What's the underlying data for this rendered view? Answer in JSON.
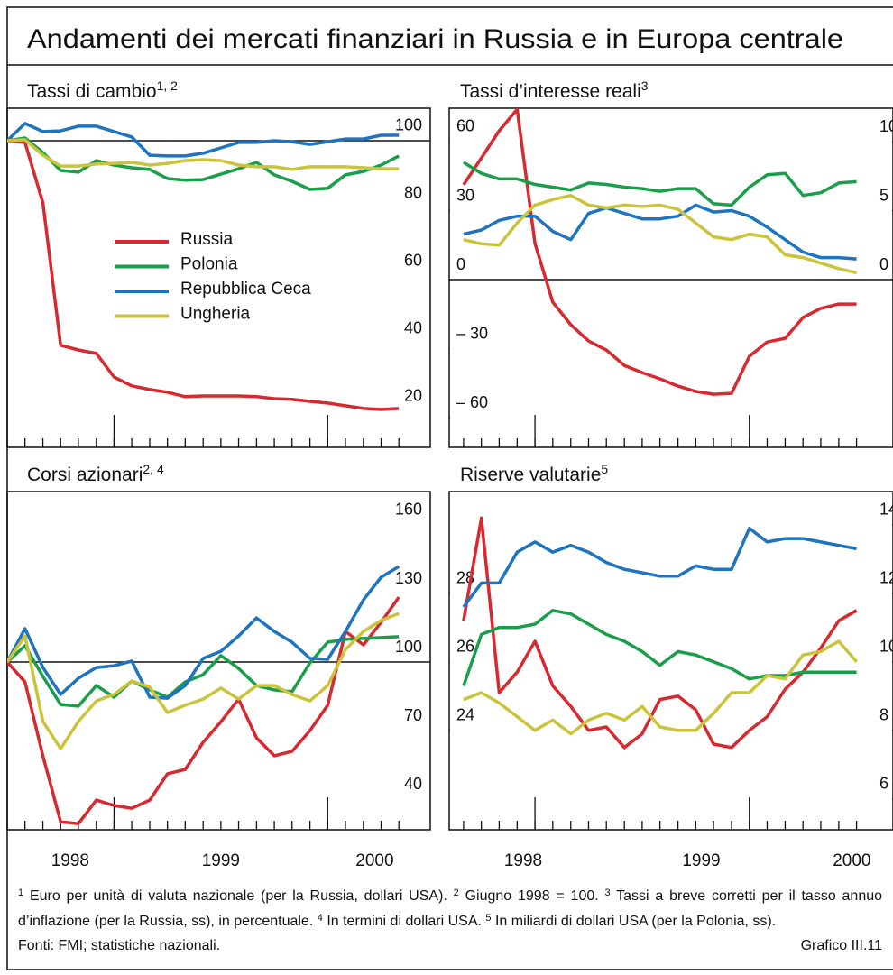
{
  "title": "Andamenti dei mercati finanziari in Russia e in Europa centrale",
  "chart_data": [
    {
      "type": "line",
      "title": "Tassi di cambio",
      "title_note": "1, 2",
      "x": [
        1998.5,
        1998.583,
        1998.667,
        1998.75,
        1998.833,
        1998.917,
        1999.0,
        1999.083,
        1999.167,
        1999.25,
        1999.333,
        1999.417,
        1999.5,
        1999.583,
        1999.667,
        1999.75,
        1999.833,
        1999.917,
        2000.0,
        2000.083,
        2000.167,
        2000.25,
        2000.333
      ],
      "xlim": [
        1998.5,
        2000.48
      ],
      "xticks": [
        1999,
        2000
      ],
      "ylim": [
        9.3,
        109.6
      ],
      "yticks": [
        20,
        40,
        60,
        80,
        100
      ],
      "ytick_side": "right",
      "refline": 100,
      "legend": "center left",
      "series": [
        {
          "name": "Russia",
          "color": "#d62a30",
          "values": [
            100,
            99.5,
            81.6,
            39.5,
            38.1,
            37.1,
            30.1,
            27.5,
            26.4,
            25.6,
            24.3,
            24.5,
            24.5,
            24.5,
            24.3,
            23.7,
            23.5,
            22.9,
            22.4,
            21.6,
            20.8,
            20.5,
            20.8
          ]
        },
        {
          "name": "Polonia",
          "color": "#1a9e4a",
          "values": [
            100,
            100.8,
            96.5,
            91.2,
            90.7,
            94.1,
            92.8,
            92.0,
            91.5,
            88.8,
            88.3,
            88.5,
            90.1,
            91.7,
            93.6,
            89.9,
            88.0,
            85.6,
            85.9,
            89.9,
            90.9,
            92.8,
            95.5
          ]
        },
        {
          "name": "Repubblica Ceca",
          "color": "#1f74bf",
          "values": [
            100,
            105.1,
            102.7,
            102.9,
            104.3,
            104.3,
            102.7,
            101.1,
            95.7,
            95.5,
            95.5,
            96.3,
            97.9,
            99.5,
            99.5,
            100,
            99.7,
            98.9,
            99.7,
            100.5,
            100.5,
            101.6,
            101.6
          ]
        },
        {
          "name": "Ungheria",
          "color": "#c9c43c",
          "values": [
            100,
            100.3,
            95.7,
            92.5,
            92.5,
            93.1,
            93.3,
            93.6,
            92.8,
            93.3,
            94.1,
            94.4,
            94.1,
            92.8,
            92.3,
            92.3,
            91.5,
            92.3,
            92.3,
            92.3,
            92.0,
            91.7,
            91.7
          ]
        }
      ]
    },
    {
      "type": "line",
      "title": "Tassi d’interesse reali",
      "title_note": "3",
      "x": [
        1998.667,
        1998.75,
        1998.833,
        1998.917,
        1999.0,
        1999.083,
        1999.167,
        1999.25,
        1999.333,
        1999.417,
        1999.5,
        1999.583,
        1999.667,
        1999.75,
        1999.833,
        1999.917,
        2000.0,
        2000.083,
        2000.167,
        2000.25,
        2000.333,
        2000.417,
        2000.5
      ],
      "xlim": [
        1998.6,
        2000.67
      ],
      "xticks": [
        1999,
        2000
      ],
      "ylim": [
        -72.9,
        74.5
      ],
      "yticks": [
        {
          "value": -60,
          "label": "– 60"
        },
        {
          "value": -30,
          "label": "– 30"
        },
        0,
        30,
        60
      ],
      "ytick_side": "left",
      "y2lim": [
        -12.15,
        12.42
      ],
      "y2ticks": [
        0,
        5,
        10
      ],
      "refline": 0,
      "series": [
        {
          "color": "#d62a30",
          "values": [
            41.2,
            52.9,
            64.7,
            74.0,
            15.7,
            -9.8,
            -19.6,
            -26.7,
            -30.6,
            -37.3,
            -40.4,
            -43.1,
            -46.3,
            -48.6,
            -49.8,
            -49.4,
            -33.3,
            -27.1,
            -25.5,
            -16.5,
            -12.5,
            -10.6,
            -10.6
          ]
        },
        {
          "color": "#1a9e4a",
          "axis": "y2",
          "values": [
            8.5,
            7.7,
            7.3,
            7.3,
            6.9,
            6.7,
            6.5,
            7.0,
            6.9,
            6.7,
            6.6,
            6.4,
            6.6,
            6.6,
            5.5,
            5.4,
            6.7,
            7.6,
            7.7,
            6.1,
            6.3,
            7.0,
            7.1
          ]
        },
        {
          "color": "#1f74bf",
          "axis": "y2",
          "values": [
            3.3,
            3.6,
            4.3,
            4.6,
            4.6,
            3.5,
            2.9,
            4.8,
            5.2,
            4.8,
            4.4,
            4.4,
            4.6,
            5.4,
            4.9,
            5.0,
            4.6,
            3.8,
            2.9,
            2.0,
            1.6,
            1.6,
            1.5
          ]
        },
        {
          "color": "#c9c43c",
          "axis": "y2",
          "values": [
            2.9,
            2.6,
            2.5,
            4.1,
            5.4,
            5.8,
            6.1,
            5.4,
            5.2,
            5.4,
            5.3,
            5.4,
            5.1,
            4.1,
            3.1,
            2.9,
            3.3,
            3.1,
            1.8,
            1.6,
            1.2,
            0.8,
            0.5
          ]
        }
      ]
    },
    {
      "type": "line",
      "title": "Corsi azionari",
      "title_note": "2, 4",
      "x": [
        1998.5,
        1998.583,
        1998.667,
        1998.75,
        1998.833,
        1998.917,
        1999.0,
        1999.083,
        1999.167,
        1999.25,
        1999.333,
        1999.417,
        1999.5,
        1999.583,
        1999.667,
        1999.75,
        1999.833,
        1999.917,
        2000.0,
        2000.083,
        2000.167,
        2000.25,
        2000.333
      ],
      "xlim": [
        1998.5,
        2000.48
      ],
      "xticks": [
        1999,
        2000
      ],
      "xlabels": [
        {
          "value": 1998.795,
          "label": "1998"
        },
        {
          "value": 1999.5,
          "label": "1999"
        },
        {
          "value": 2000.22,
          "label": "2000"
        }
      ],
      "ylim": [
        26.6,
        174.6
      ],
      "yticks": [
        40,
        70,
        100,
        130,
        160
      ],
      "ytick_side": "right",
      "refline": 100,
      "series": [
        {
          "color": "#d62a30",
          "values": [
            100,
            91.3,
            58.9,
            30.1,
            29.3,
            39.6,
            37.2,
            36.0,
            39.6,
            51.1,
            53.0,
            64.9,
            73.9,
            83.8,
            66.8,
            59.0,
            60.9,
            70.0,
            81.1,
            113.4,
            107.5,
            117.4,
            128.4
          ]
        },
        {
          "color": "#1a9e4a",
          "values": [
            100,
            107.1,
            93.7,
            81.4,
            80.7,
            89.7,
            84.6,
            91.7,
            87.8,
            84.6,
            91.3,
            94.5,
            102.8,
            97.2,
            89.7,
            87.8,
            87.0,
            99.6,
            108.7,
            109.9,
            110.3,
            110.7,
            111.1
          ]
        },
        {
          "color": "#1f74bf",
          "values": [
            100,
            114.6,
            97.6,
            85.8,
            92.9,
            97.6,
            98.4,
            100.4,
            84.6,
            84.2,
            89.7,
            101.6,
            104.7,
            111.4,
            119.3,
            113.4,
            108.7,
            101.6,
            101.2,
            113.4,
            127.2,
            137.1,
            141.8
          ]
        },
        {
          "color": "#c9c43c",
          "values": [
            100,
            111.4,
            74.0,
            62.1,
            74.0,
            83.0,
            85.8,
            91.7,
            89.0,
            77.9,
            81.1,
            83.8,
            88.6,
            83.8,
            89.7,
            89.7,
            85.8,
            83.0,
            89.7,
            105.5,
            113.4,
            118.2,
            121.3
          ]
        }
      ]
    },
    {
      "type": "line",
      "title": "Riserve valutarie",
      "title_note": "5",
      "x": [
        1998.667,
        1998.75,
        1998.833,
        1998.917,
        1999.0,
        1999.083,
        1999.167,
        1999.25,
        1999.333,
        1999.417,
        1999.5,
        1999.583,
        1999.667,
        1999.75,
        1999.833,
        1999.917,
        2000.0,
        2000.083,
        2000.167,
        2000.25,
        2000.333,
        2000.417,
        2000.5
      ],
      "xlim": [
        1998.6,
        2000.67
      ],
      "xticks": [
        1999,
        2000
      ],
      "xlabels": [
        {
          "value": 1998.945,
          "label": "1998"
        },
        {
          "value": 1999.776,
          "label": "1999"
        },
        {
          "value": 2000.478,
          "label": "2000"
        }
      ],
      "ylim": [
        21.1,
        30.97
      ],
      "yticks": [
        24,
        26,
        28
      ],
      "ytick_side": "left",
      "y2lim": [
        5.1,
        14.97
      ],
      "y2ticks": [
        6,
        8,
        10,
        12,
        14
      ],
      "series": [
        {
          "color": "#d62a30",
          "axis": "y2",
          "values": [
            11.2,
            14.2,
            9.1,
            9.7,
            10.6,
            9.3,
            8.7,
            8.0,
            8.1,
            7.5,
            7.9,
            8.9,
            9.0,
            8.6,
            7.6,
            7.5,
            8.0,
            8.4,
            9.2,
            9.7,
            10.4,
            11.2,
            11.5
          ]
        },
        {
          "color": "#1a9e4a",
          "values": [
            25.3,
            26.8,
            27.0,
            27.0,
            27.1,
            27.5,
            27.4,
            27.1,
            26.8,
            26.6,
            26.3,
            25.9,
            26.3,
            26.2,
            26.0,
            25.8,
            25.5,
            25.6,
            25.6,
            25.7,
            25.7,
            25.7,
            25.7
          ]
        },
        {
          "color": "#1f74bf",
          "axis": "y2",
          "values": [
            11.6,
            12.3,
            12.3,
            13.2,
            13.5,
            13.2,
            13.4,
            13.2,
            12.9,
            12.7,
            12.6,
            12.5,
            12.5,
            12.8,
            12.7,
            12.7,
            13.9,
            13.5,
            13.6,
            13.6,
            13.5,
            13.4,
            13.3
          ]
        },
        {
          "color": "#c9c43c",
          "axis": "y2",
          "values": [
            8.9,
            9.1,
            8.8,
            8.4,
            8.0,
            8.3,
            7.9,
            8.3,
            8.5,
            8.3,
            8.7,
            8.1,
            8.0,
            8.0,
            8.5,
            9.1,
            9.1,
            9.6,
            9.5,
            10.2,
            10.3,
            10.6,
            10.0
          ]
        }
      ]
    }
  ],
  "footnotes": [
    {
      "number": "1",
      "text": "Euro per unità di valuta nazionale (per la Russia, dollari USA)."
    },
    {
      "number": "2",
      "text": "Giugno 1998 = 100."
    },
    {
      "number": "3",
      "text": "Tassi a breve corretti per il tasso annuo d’inflazione (per la Russia, ss), in percentuale."
    },
    {
      "number": "4",
      "text": "In termini di dollari USA."
    },
    {
      "number": "5",
      "text": "In miliardi di dollari USA (per la Polonia, ss)."
    }
  ],
  "source": "Fonti: FMI; statistiche nazionali.",
  "figure_label": "Grafico III.11"
}
